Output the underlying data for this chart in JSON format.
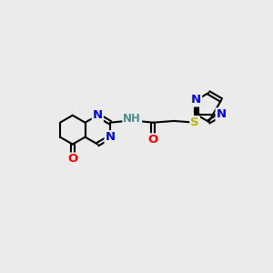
{
  "bg_color": "#ebebeb",
  "atom_colors": {
    "N": "#0000ff",
    "O": "#ff0000",
    "S": "#b8b800",
    "C": "#000000",
    "H": "#4a9090"
  },
  "bond_color": "#000000",
  "bond_width": 1.5,
  "font_size_atoms": 9.5,
  "title": ""
}
